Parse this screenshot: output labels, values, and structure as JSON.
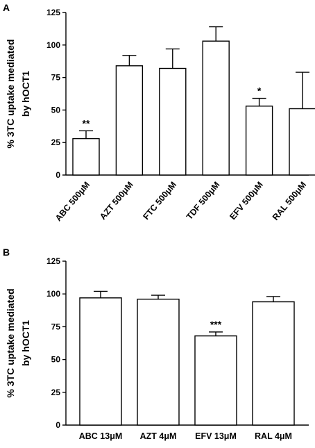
{
  "chart_data": [
    {
      "type": "bar",
      "panel_label": "A",
      "ylabel": [
        "% 3TC uptake mediated",
        "by hOCT1"
      ],
      "ylim": [
        0,
        125
      ],
      "yticks": [
        0,
        25,
        50,
        75,
        100,
        125
      ],
      "categories": [
        "ABC 500μM",
        "AZT 500μM",
        "FTC 500μM",
        "TDF 500μM",
        "EFV 500μM",
        "RAL 500μM"
      ],
      "values": [
        28,
        84,
        82,
        103,
        53,
        51
      ],
      "errors": [
        6,
        8,
        15,
        11,
        6,
        28
      ],
      "significance": [
        "**",
        "",
        "",
        "",
        "*",
        ""
      ],
      "category_label_rotation": -50
    },
    {
      "type": "bar",
      "panel_label": "B",
      "ylabel": [
        "% 3TC uptake mediated",
        "by hOCT1"
      ],
      "ylim": [
        0,
        125
      ],
      "yticks": [
        0,
        25,
        50,
        75,
        100,
        125
      ],
      "categories": [
        "ABC 13μM",
        "AZT 4μM",
        "EFV 13μM",
        "RAL 4μM"
      ],
      "values": [
        97,
        96,
        68,
        94
      ],
      "errors": [
        5,
        3,
        3,
        4
      ],
      "significance": [
        "",
        "",
        "***",
        ""
      ],
      "category_label_rotation": 0
    }
  ]
}
